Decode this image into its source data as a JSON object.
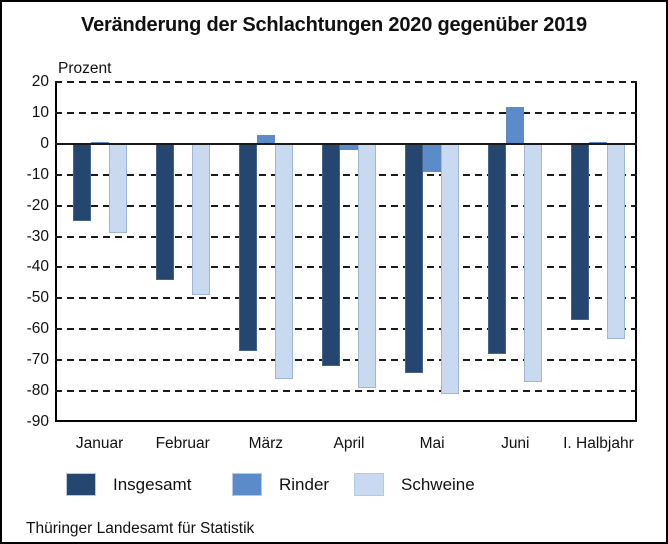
{
  "title": "Veränderung der Schlachtungen 2020 gegenüber 2019",
  "source": "Thüringer Landesamt für Statistik",
  "chart_data": {
    "type": "bar",
    "title": "Veränderung der Schlachtungen 2020 gegenüber 2019",
    "ylabel": "Prozent",
    "categories": [
      "Januar",
      "Februar",
      "März",
      "April",
      "Mai",
      "Juni",
      "I. Halbjahr"
    ],
    "series": [
      {
        "name": "Insgesamt",
        "color": "#24466F",
        "values": [
          -25,
          -44,
          -67,
          -72,
          -74,
          -68,
          -57
        ]
      },
      {
        "name": "Rinder",
        "color": "#5C8BCA",
        "values": [
          0.5,
          0,
          3,
          -2,
          -9,
          12,
          0.5
        ]
      },
      {
        "name": "Schweine",
        "color": "#C9D9F0",
        "values": [
          -29,
          -49,
          -76,
          -79,
          -81,
          -77,
          -63
        ]
      }
    ],
    "ylim": [
      -90,
      20
    ],
    "yticks": [
      20,
      10,
      0,
      -10,
      -20,
      -30,
      -40,
      -50,
      -60,
      -70,
      -80,
      -90
    ],
    "grid": "horizontal-dashed",
    "zero_line": true,
    "legend_position": "bottom"
  }
}
